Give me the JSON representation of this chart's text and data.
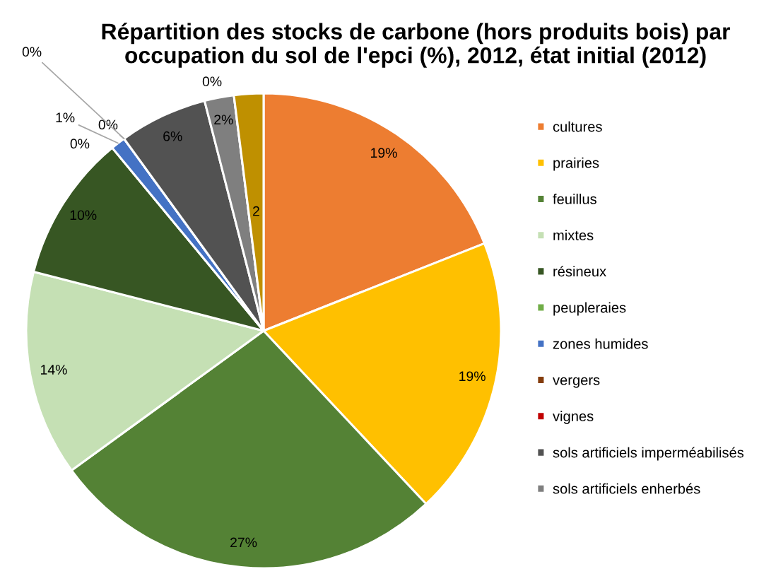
{
  "chart_data": {
    "type": "pie",
    "title": "Répartition des stocks de carbone (hors produits bois) par\noccupation du sol de l'epci (%), 2012, état initial (2012)",
    "categories": [
      "cultures",
      "prairies",
      "feuillus",
      "mixtes",
      "résineux",
      "peupleraies",
      "zones humides",
      "vergers",
      "vignes",
      "sols artificiels imperméabilisés",
      "sols artificiels enherbés",
      null,
      null
    ],
    "values": [
      19,
      19,
      27,
      14,
      10,
      0,
      1,
      0,
      0,
      6,
      2,
      0,
      2
    ],
    "colors": [
      "#ed7d31",
      "#ffc000",
      "#548235",
      "#c5e0b4",
      "#375623",
      "#70ad47",
      "#4472c4",
      "#843c0c",
      "#c00000",
      "#525252",
      "#7f7f7f",
      "#a5a5a5",
      "#bf9000"
    ],
    "value_labels": [
      "19%",
      "19%",
      "27%",
      "14%",
      "10%",
      "0%",
      "1%",
      "0%",
      "0%",
      "6%",
      "2%",
      "0%",
      "2"
    ],
    "legend": "right"
  }
}
